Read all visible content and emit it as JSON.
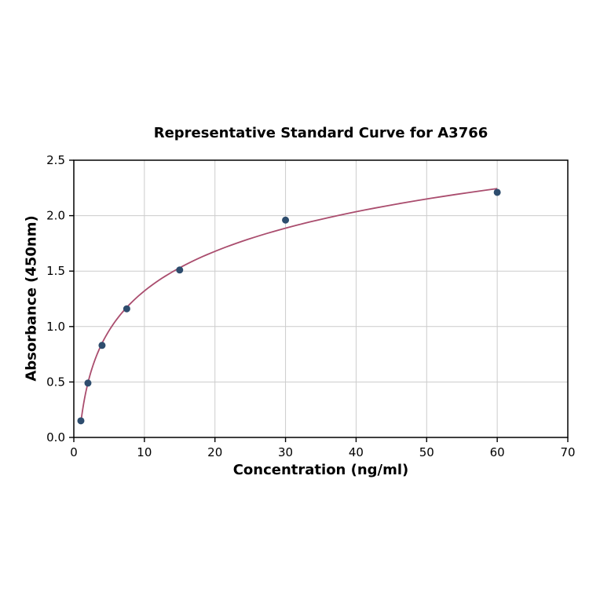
{
  "page": {
    "background": "#ffffff"
  },
  "chart_data": {
    "type": "scatter",
    "title": "Representative Standard Curve for A3766",
    "xlabel": "Concentration (ng/ml)",
    "ylabel": "Absorbance (450nm)",
    "xlim": [
      0,
      70
    ],
    "ylim": [
      0.0,
      2.5
    ],
    "grid": true,
    "legend_position": "none",
    "x_ticks": {
      "values": [
        0,
        10,
        20,
        30,
        40,
        50,
        60,
        70
      ],
      "labels": [
        "0",
        "10",
        "20",
        "30",
        "40",
        "50",
        "60",
        "70"
      ]
    },
    "y_ticks": {
      "values": [
        0.0,
        0.5,
        1.0,
        1.5,
        2.0,
        2.5
      ],
      "labels": [
        "0.0",
        "0.5",
        "1.0",
        "1.5",
        "2.0",
        "2.5"
      ]
    },
    "series": [
      {
        "name": "standard-points",
        "type": "scatter",
        "x": [
          1,
          2,
          4,
          7.5,
          15,
          30,
          60
        ],
        "y": [
          0.15,
          0.49,
          0.83,
          1.16,
          1.51,
          1.96,
          2.21
        ]
      },
      {
        "name": "log-fit-curve",
        "type": "line",
        "fit": "logarithmic"
      }
    ],
    "colors": {
      "points": "#2e4d6e",
      "curve": "#aa4d6e",
      "grid": "#cccccc",
      "axis": "#000000",
      "text": "#000000"
    }
  }
}
